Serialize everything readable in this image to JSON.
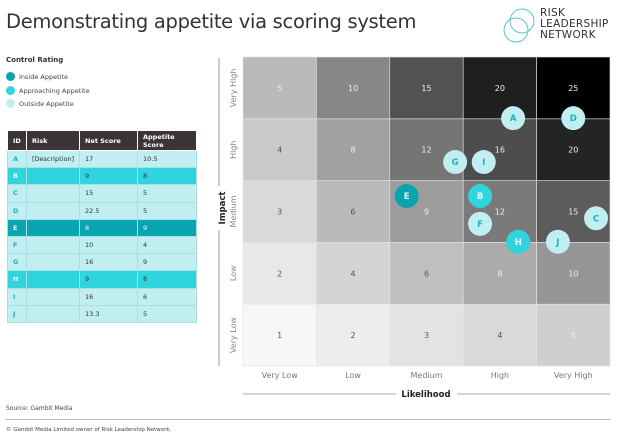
{
  "title": "Demonstrating appetite via scoring system",
  "logo": {
    "lines": [
      "RISK",
      "LEADERSHIP",
      "NETWORK"
    ],
    "color": "#5bc3d0"
  },
  "legend": {
    "title": "Control Rating",
    "items": [
      {
        "label": "Inside Appetite",
        "color": "#0aa3b0"
      },
      {
        "label": "Approaching Appetite",
        "color": "#2fd4dc"
      },
      {
        "label": "Outside Appetite",
        "color": "#c1eef0"
      }
    ]
  },
  "table": {
    "headers": [
      "ID",
      "Risk",
      "Net Score",
      "Appetite Score"
    ],
    "rows": [
      {
        "id": "A",
        "risk": "[Description]",
        "net": "17",
        "appetite": "10.5",
        "status": "outside"
      },
      {
        "id": "B",
        "risk": "",
        "net": "9",
        "appetite": "8",
        "status": "approaching"
      },
      {
        "id": "C",
        "risk": "",
        "net": "15",
        "appetite": "5",
        "status": "outside"
      },
      {
        "id": "D",
        "risk": "",
        "net": "22.5",
        "appetite": "5",
        "status": "outside"
      },
      {
        "id": "E",
        "risk": "",
        "net": "8",
        "appetite": "9",
        "status": "inside"
      },
      {
        "id": "F",
        "risk": "",
        "net": "10",
        "appetite": "4",
        "status": "outside"
      },
      {
        "id": "G",
        "risk": "",
        "net": "16",
        "appetite": "9",
        "status": "outside"
      },
      {
        "id": "H",
        "risk": "",
        "net": "9",
        "appetite": "8",
        "status": "approaching"
      },
      {
        "id": "I",
        "risk": "",
        "net": "16",
        "appetite": "6",
        "status": "outside"
      },
      {
        "id": "J",
        "risk": "",
        "net": "13.3",
        "appetite": "5",
        "status": "outside"
      }
    ]
  },
  "chart_data": {
    "type": "heatmap",
    "xlabel": "Likelihood",
    "ylabel": "Impact",
    "x_categories": [
      "Very Low",
      "Low",
      "Medium",
      "High",
      "Very High"
    ],
    "y_categories": [
      "Very Low",
      "Low",
      "Medium",
      "High",
      "Very High"
    ],
    "cells": [
      [
        1,
        2,
        3,
        4,
        5
      ],
      [
        2,
        4,
        6,
        8,
        10
      ],
      [
        3,
        6,
        9,
        12,
        15
      ],
      [
        4,
        8,
        12,
        16,
        20
      ],
      [
        5,
        10,
        15,
        20,
        25
      ]
    ],
    "points": [
      {
        "id": "A",
        "likelihood": 4.18,
        "impact": 4.51,
        "status": "outside"
      },
      {
        "id": "D",
        "likelihood": 5.0,
        "impact": 4.51,
        "status": "outside"
      },
      {
        "id": "G",
        "likelihood": 3.39,
        "impact": 3.8,
        "status": "outside"
      },
      {
        "id": "I",
        "likelihood": 3.78,
        "impact": 3.8,
        "status": "outside"
      },
      {
        "id": "E",
        "likelihood": 2.73,
        "impact": 3.25,
        "status": "inside"
      },
      {
        "id": "B",
        "likelihood": 3.73,
        "impact": 3.25,
        "status": "approaching"
      },
      {
        "id": "F",
        "likelihood": 3.73,
        "impact": 2.8,
        "status": "outside"
      },
      {
        "id": "H",
        "likelihood": 4.25,
        "impact": 2.51,
        "status": "approaching"
      },
      {
        "id": "J",
        "likelihood": 4.79,
        "impact": 2.51,
        "status": "outside"
      },
      {
        "id": "C",
        "likelihood": 5.31,
        "impact": 2.89,
        "status": "outside"
      }
    ],
    "status_colors": {
      "inside": "#0aa3b0",
      "approaching": "#2fd4dc",
      "outside": "#c1eef0"
    }
  },
  "footer": {
    "source": "Source: Gambit Media",
    "copyright": "© Gambit Media Limited owner of Risk Leadership Network."
  }
}
